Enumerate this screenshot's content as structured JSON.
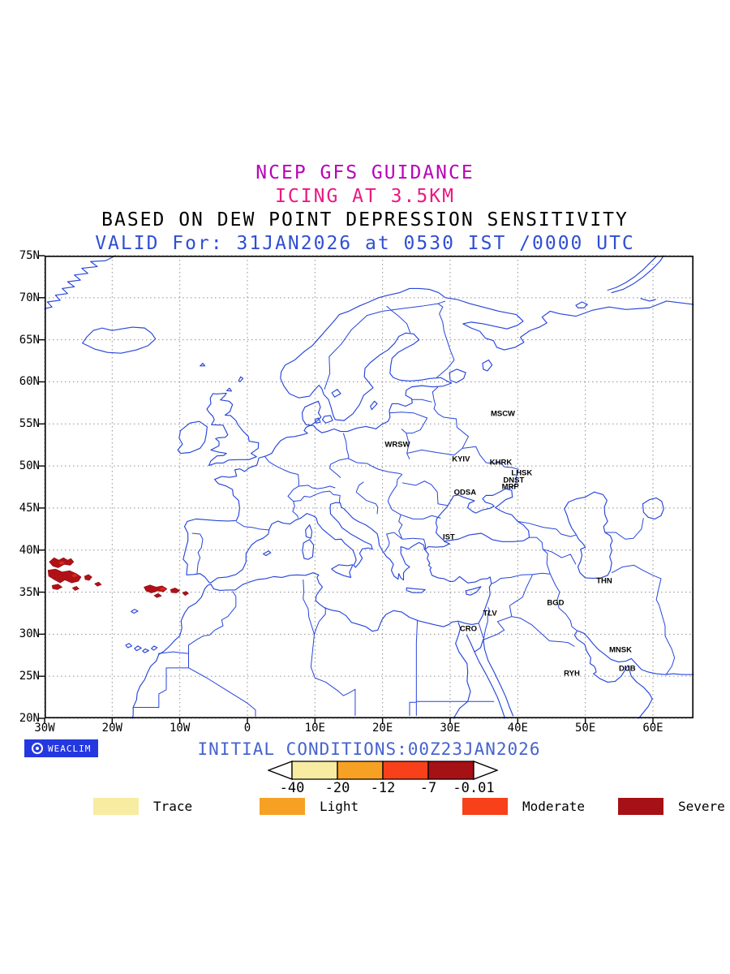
{
  "header": {
    "line1": "NCEP GFS GUIDANCE",
    "line2": "ICING AT 3.5KM",
    "line3": "BASED ON DEW POINT DEPRESSION SENSITIVITY",
    "line4": "VALID For: 31JAN2026 at 0530 IST /0000 UTC",
    "colors": {
      "line1": "#b804b8",
      "line2": "#ea1a83",
      "line3": "#000000",
      "line4": "#2f4fd2"
    }
  },
  "map": {
    "coast_color": "#2746d9",
    "grid_color": "#909090",
    "lat_ticks": [
      {
        "label": "75N",
        "value": 75
      },
      {
        "label": "70N",
        "value": 70
      },
      {
        "label": "65N",
        "value": 65
      },
      {
        "label": "60N",
        "value": 60
      },
      {
        "label": "55N",
        "value": 55
      },
      {
        "label": "50N",
        "value": 50
      },
      {
        "label": "45N",
        "value": 45
      },
      {
        "label": "40N",
        "value": 40
      },
      {
        "label": "35N",
        "value": 35
      },
      {
        "label": "30N",
        "value": 30
      },
      {
        "label": "25N",
        "value": 25
      },
      {
        "label": "20N",
        "value": 20
      }
    ],
    "lon_ticks": [
      {
        "label": "30W",
        "value": -30
      },
      {
        "label": "20W",
        "value": -20
      },
      {
        "label": "10W",
        "value": -10
      },
      {
        "label": "0",
        "value": 0
      },
      {
        "label": "10E",
        "value": 10
      },
      {
        "label": "20E",
        "value": 20
      },
      {
        "label": "30E",
        "value": 30
      },
      {
        "label": "40E",
        "value": 40
      },
      {
        "label": "50E",
        "value": 50
      },
      {
        "label": "60E",
        "value": 60
      }
    ],
    "cities": [
      {
        "name": "MSCW",
        "lon": 37.8,
        "lat": 56.2
      },
      {
        "name": "WRSW",
        "lon": 22.2,
        "lat": 52.5
      },
      {
        "name": "KYIV",
        "lon": 31.6,
        "lat": 50.8
      },
      {
        "name": "KHRK",
        "lon": 37.5,
        "lat": 50.4
      },
      {
        "name": "LHSK",
        "lon": 40.6,
        "lat": 49.1
      },
      {
        "name": "DNST",
        "lon": 39.4,
        "lat": 48.3
      },
      {
        "name": "MRP",
        "lon": 38.9,
        "lat": 47.5
      },
      {
        "name": "ODSA",
        "lon": 32.2,
        "lat": 46.8
      },
      {
        "name": "IST",
        "lon": 29.8,
        "lat": 41.5
      },
      {
        "name": "THN",
        "lon": 52.8,
        "lat": 36.3
      },
      {
        "name": "BGD",
        "lon": 45.6,
        "lat": 33.7
      },
      {
        "name": "TLV",
        "lon": 35.9,
        "lat": 32.4
      },
      {
        "name": "CRO",
        "lon": 32.7,
        "lat": 30.6
      },
      {
        "name": "MNSK",
        "lon": 55.2,
        "lat": 28.1
      },
      {
        "name": "RYH",
        "lon": 48.0,
        "lat": 25.3
      },
      {
        "name": "DUB",
        "lon": 56.2,
        "lat": 25.9
      }
    ]
  },
  "footer": {
    "watermark": "WEACLIM",
    "initial_conditions": "INITIAL CONDITIONS:00Z23JAN2026",
    "colorbar": {
      "values": [
        "-40",
        "-20",
        "-12",
        "-7",
        "-0.01"
      ],
      "segment_colors": [
        "#f8eca2",
        "#f7a124",
        "#f8401b",
        "#a61115"
      ]
    },
    "legend": {
      "items": [
        {
          "label": "Trace",
          "color": "#f8eca2"
        },
        {
          "label": "Light",
          "color": "#f7a124"
        },
        {
          "label": "Moderate",
          "color": "#f8401b"
        },
        {
          "label": "Severe",
          "color": "#a61115"
        }
      ]
    }
  }
}
